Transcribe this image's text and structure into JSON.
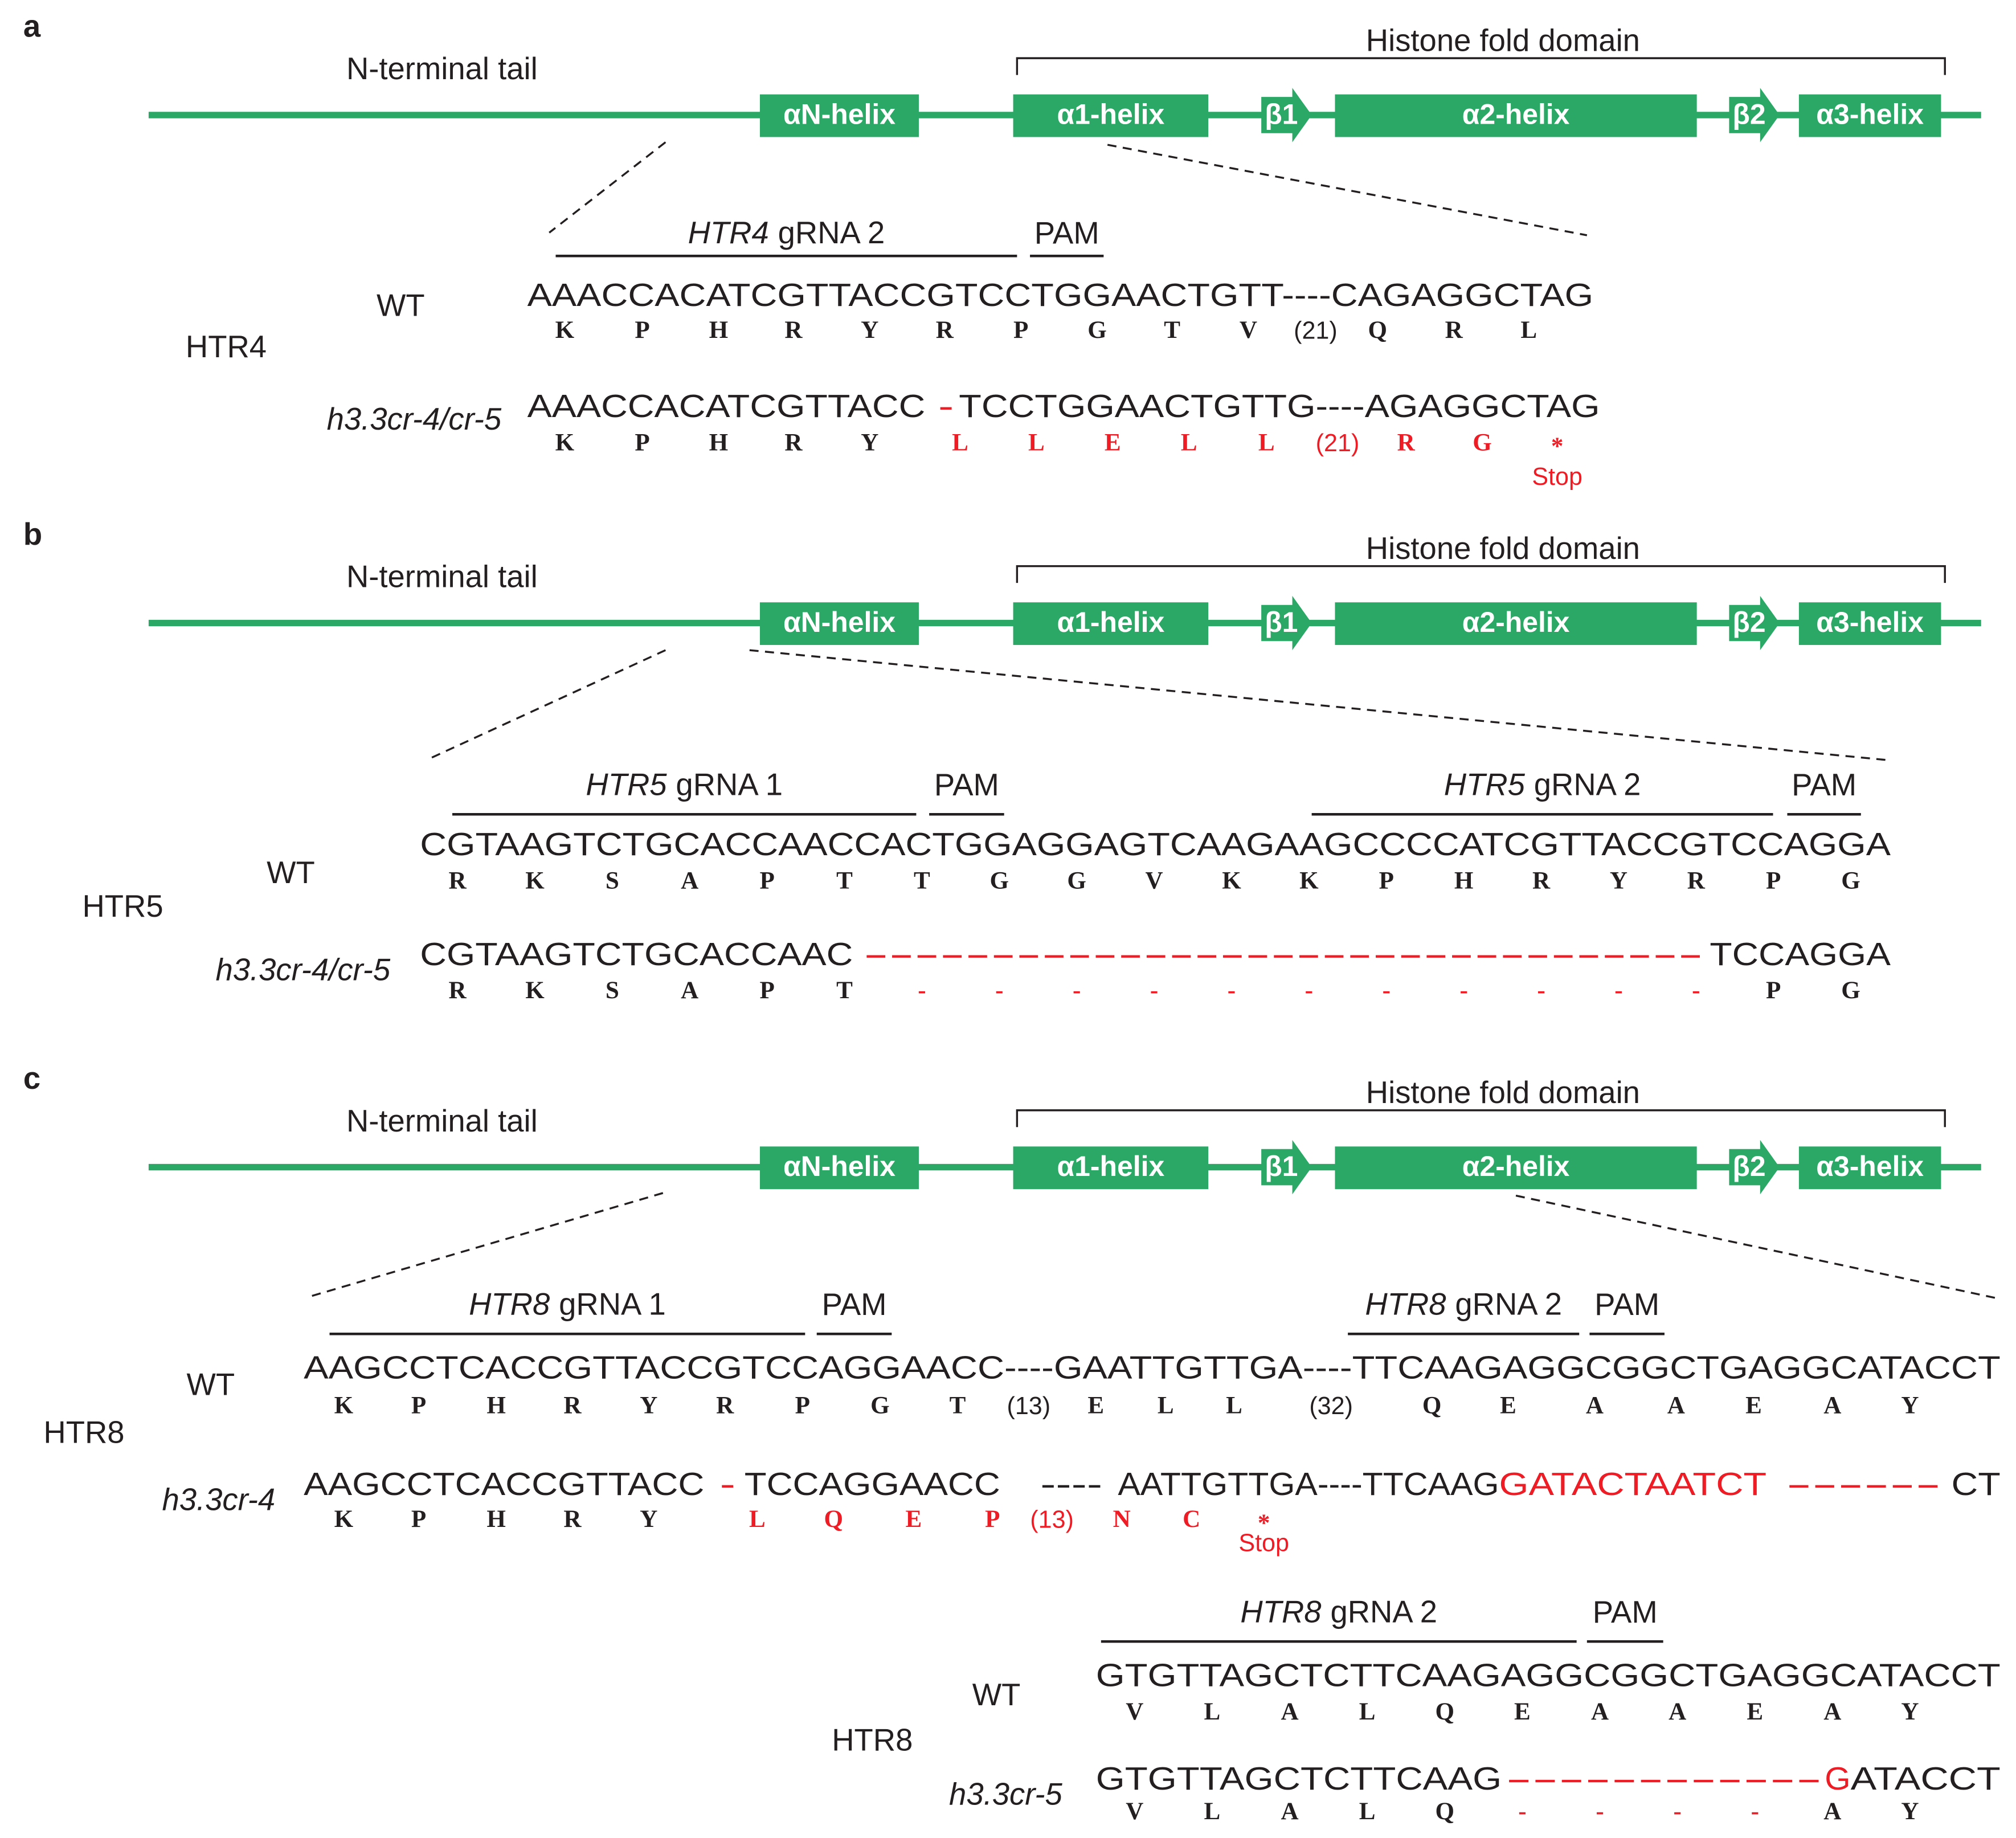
{
  "panels": [
    {
      "label": "a",
      "domain": {
        "n_terminal_tail": "N-terminal tail",
        "histone_fold_domain": "Histone fold domain",
        "elements": [
          "αN-helix",
          "α1-helix",
          "β1",
          "α2-helix",
          "β2",
          "α3-helix"
        ]
      },
      "blocks": [
        {
          "gene": "HTR4",
          "grnas": [
            {
              "gene": "HTR4",
              "name": "gRNA 2",
              "pam": "PAM"
            }
          ],
          "wt": {
            "label": "WT",
            "sequence": [
              "AAACCACATCGTTACCGTCCTGGAACTGTT----CAGAGGCTAG"
            ],
            "amino_acids": [
              "K",
              "P",
              "H",
              "R",
              "Y",
              "R",
              "P",
              "G",
              "T",
              "V",
              "(21)",
              "Q",
              "R",
              "L"
            ]
          },
          "mutant": {
            "label": "h3.3cr-4/cr-5",
            "sequence": [
              "AAACCACATCGTTACC",
              "-",
              "TCCTGGAACTGTTG----AGAGGCTAG"
            ],
            "amino_acids": [
              "K",
              "P",
              "H",
              "R",
              "Y",
              "L",
              "L",
              "E",
              "L",
              "L",
              "(21)",
              "R",
              "G",
              "*"
            ],
            "stop": "Stop"
          }
        }
      ]
    },
    {
      "label": "b",
      "domain": {
        "n_terminal_tail": "N-terminal tail",
        "histone_fold_domain": "Histone fold domain",
        "elements": [
          "αN-helix",
          "α1-helix",
          "β1",
          "α2-helix",
          "β2",
          "α3-helix"
        ]
      },
      "blocks": [
        {
          "gene": "HTR5",
          "grnas": [
            {
              "gene": "HTR5",
              "name": "gRNA 1",
              "pam": "PAM"
            },
            {
              "gene": "HTR5",
              "name": "gRNA 2",
              "pam": "PAM"
            }
          ],
          "wt": {
            "label": "WT",
            "sequence": [
              "CGTAAGTCTGCACCAACCACTGGAGGAGTCAAGAAGCCCCATCGTTACCGTCCAGGA"
            ],
            "amino_acids": [
              "R",
              "K",
              "S",
              "A",
              "P",
              "T",
              "T",
              "G",
              "G",
              "V",
              "K",
              "K",
              "P",
              "H",
              "R",
              "Y",
              "R",
              "P",
              "G"
            ]
          },
          "mutant": {
            "label": "h3.3cr-4/cr-5",
            "sequence": [
              "CGTAAGTCTGCACCAAC",
              "---------------------------------",
              "TCCAGGA"
            ],
            "amino_acids": [
              "R",
              "K",
              "S",
              "A",
              "P",
              "T",
              "-",
              "-",
              "-",
              "-",
              "-",
              "-",
              "-",
              "-",
              "-",
              "-",
              "-",
              "P",
              "G"
            ]
          }
        }
      ]
    },
    {
      "label": "c",
      "domain": {
        "n_terminal_tail": "N-terminal tail",
        "histone_fold_domain": "Histone fold domain",
        "elements": [
          "αN-helix",
          "α1-helix",
          "β1",
          "α2-helix",
          "β2",
          "α3-helix"
        ]
      },
      "blocks": [
        {
          "gene": "HTR8",
          "grnas": [
            {
              "gene": "HTR8",
              "name": "gRNA 1",
              "pam": "PAM"
            },
            {
              "gene": "HTR8",
              "name": "gRNA 2",
              "pam": "PAM"
            }
          ],
          "wt": {
            "label": "WT",
            "sequence": [
              "AAGCCTCACCGTTACCGTCCAGGAACC----GAATTGTTGA----TTCAAGAGGCGGCTGAGGCATACCT"
            ],
            "amino_acids": [
              "K",
              "P",
              "H",
              "R",
              "Y",
              "R",
              "P",
              "G",
              "T",
              "(13)",
              "E",
              "L",
              "L",
              "(32)",
              "Q",
              "E",
              "A",
              "A",
              "E",
              "A",
              "Y"
            ]
          },
          "mutant": {
            "label": "h3.3cr-4",
            "sequence": [
              "AAGCCTCACCGTTACC",
              "-",
              "TCCAGGAACC",
              "----",
              "AATTGTTGA----TTCAAG",
              "GATACTAATCT",
              "------",
              "CT"
            ],
            "amino_acids": [
              "K",
              "P",
              "H",
              "R",
              "Y",
              "L",
              "Q",
              "E",
              "P",
              "(13)",
              "N",
              "C",
              "*"
            ],
            "stop": "Stop"
          }
        },
        {
          "gene": "HTR8",
          "grnas": [
            {
              "gene": "HTR8",
              "name": "gRNA 2",
              "pam": "PAM"
            }
          ],
          "wt": {
            "label": "WT",
            "sequence": [
              "GTGTTAGCTCTTCAAGAGGCGGCTGAGGCATACCT"
            ],
            "amino_acids": [
              "V",
              "L",
              "A",
              "L",
              "Q",
              "E",
              "A",
              "A",
              "E",
              "A",
              "Y"
            ]
          },
          "mutant": {
            "label": "h3.3cr-5",
            "sequence": [
              "GTGTTAGCTCTTCAAG",
              "------------",
              "G",
              "ATACCT"
            ],
            "amino_acids": [
              "V",
              "L",
              "A",
              "L",
              "Q",
              "-",
              "-",
              "-",
              "-",
              "A",
              "Y"
            ]
          }
        }
      ]
    }
  ]
}
